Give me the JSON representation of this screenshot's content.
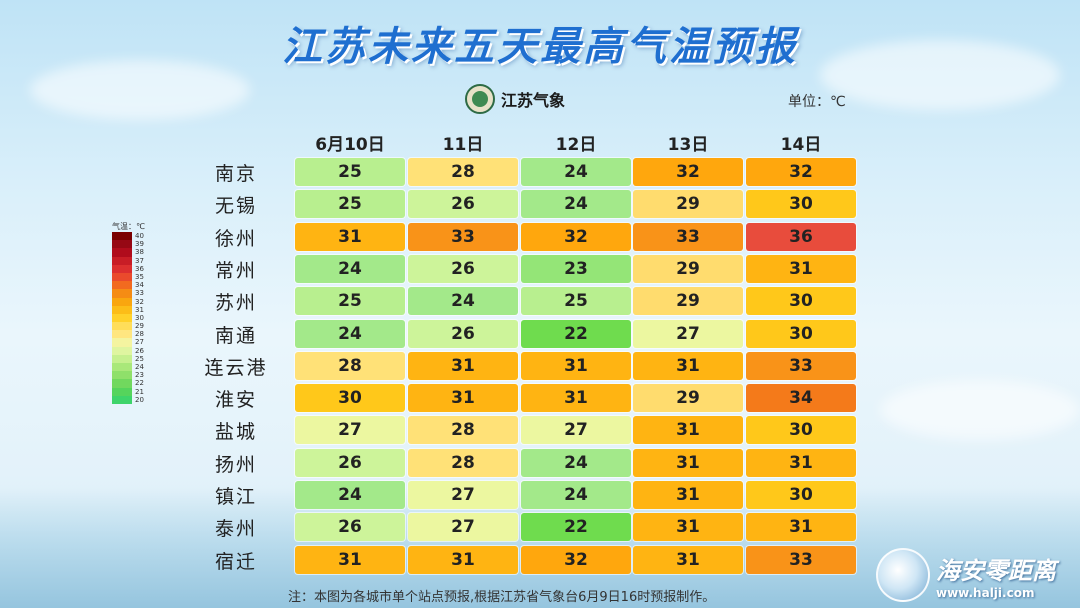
{
  "title": "江苏未来五天最高气温预报",
  "logo_text": "江苏气象",
  "unit_text": "单位：℃",
  "legend": {
    "label": "气温：℃",
    "ticks": [
      "40",
      "39",
      "38",
      "37",
      "36",
      "35",
      "34",
      "33",
      "32",
      "31",
      "30",
      "29",
      "28",
      "27",
      "26",
      "25",
      "24",
      "23",
      "22",
      "21",
      "20"
    ],
    "colors": [
      "#7a0000",
      "#960814",
      "#b00c1c",
      "#c81d26",
      "#dc2f2f",
      "#ea4a2c",
      "#f26a1f",
      "#f58c14",
      "#f9a60f",
      "#fcbd18",
      "#ffd12a",
      "#ffde5a",
      "#ffe680",
      "#f4f4a0",
      "#dff5a0",
      "#c6f08f",
      "#a9e87a",
      "#8fe06a",
      "#71d85e",
      "#55d45c",
      "#3ed46a"
    ]
  },
  "chart_data": {
    "type": "table",
    "columns": [
      "6月10日",
      "11日",
      "12日",
      "13日",
      "14日"
    ],
    "rows": [
      {
        "city": "南京",
        "values": [
          25,
          28,
          24,
          32,
          32
        ]
      },
      {
        "city": "无锡",
        "values": [
          25,
          26,
          24,
          29,
          30
        ]
      },
      {
        "city": "徐州",
        "values": [
          31,
          33,
          32,
          33,
          36
        ]
      },
      {
        "city": "常州",
        "values": [
          24,
          26,
          23,
          29,
          31
        ]
      },
      {
        "city": "苏州",
        "values": [
          25,
          24,
          25,
          29,
          30
        ]
      },
      {
        "city": "南通",
        "values": [
          24,
          26,
          22,
          27,
          30
        ]
      },
      {
        "city": "连云港",
        "values": [
          28,
          31,
          31,
          31,
          33
        ]
      },
      {
        "city": "淮安",
        "values": [
          30,
          31,
          31,
          29,
          34
        ]
      },
      {
        "city": "盐城",
        "values": [
          27,
          28,
          27,
          31,
          30
        ]
      },
      {
        "city": "扬州",
        "values": [
          26,
          28,
          24,
          31,
          31
        ]
      },
      {
        "city": "镇江",
        "values": [
          24,
          27,
          24,
          31,
          30
        ]
      },
      {
        "city": "泰州",
        "values": [
          26,
          27,
          22,
          31,
          31
        ]
      },
      {
        "city": "宿迁",
        "values": [
          31,
          31,
          32,
          31,
          33
        ]
      }
    ]
  },
  "note": "注：本图为各城市单个站点预报,根据江苏省气象台6月9日16时预报制作。",
  "watermark": {
    "name": "海安零距离",
    "url": "www.halji.com"
  }
}
